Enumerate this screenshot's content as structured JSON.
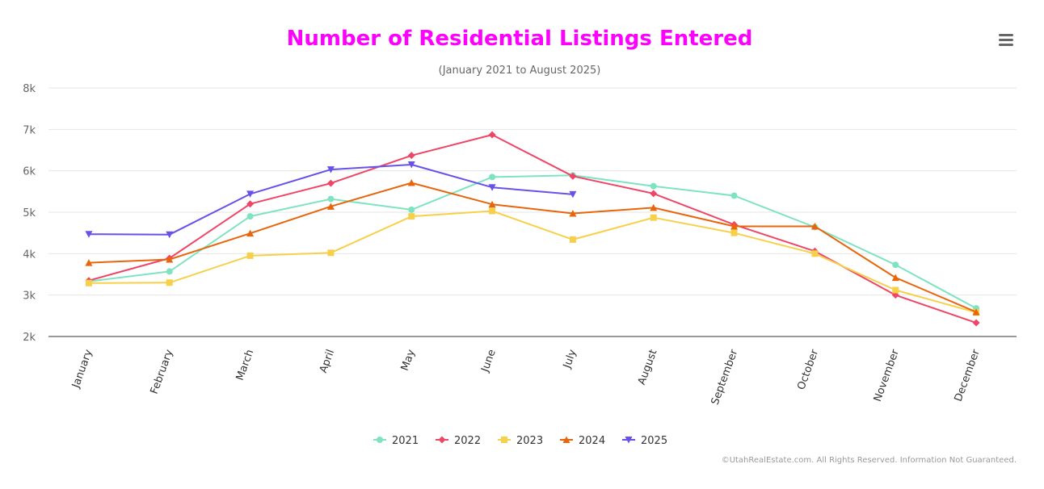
{
  "title": "Number of Residential Listings Entered",
  "subtitle": "(January 2021 to August 2025)",
  "credits": "©UtahRealEstate.com. All Rights Reserved. Information Not Guaranteed.",
  "menu_icon": "hamburger-menu-icon",
  "colors": {
    "title": "#ff00ff",
    "2021": "#7ee3c0",
    "2022": "#ef4566",
    "2023": "#f7d04a",
    "2024": "#e8650c",
    "2025": "#6652e8"
  },
  "chart_data": {
    "type": "line",
    "title": "Number of Residential Listings Entered",
    "subtitle": "(January 2021 to August 2025)",
    "xlabel": "",
    "ylabel": "",
    "ylim": [
      2000,
      8000
    ],
    "yticks": [
      2000,
      3000,
      4000,
      5000,
      6000,
      7000,
      8000
    ],
    "ytick_labels": [
      "2k",
      "3k",
      "4k",
      "5k",
      "6k",
      "7k",
      "8k"
    ],
    "grid": true,
    "legend_position": "bottom",
    "categories": [
      "January",
      "February",
      "March",
      "April",
      "May",
      "June",
      "July",
      "August",
      "September",
      "October",
      "November",
      "December"
    ],
    "series": [
      {
        "name": "2021",
        "marker": "circle",
        "values": [
          3330,
          3570,
          4900,
          5320,
          5060,
          5850,
          5890,
          5630,
          5400,
          4640,
          3730,
          2680
        ]
      },
      {
        "name": "2022",
        "marker": "diamond",
        "values": [
          3350,
          3890,
          5200,
          5700,
          6370,
          6870,
          5870,
          5450,
          4700,
          4060,
          3000,
          2330
        ]
      },
      {
        "name": "2023",
        "marker": "square",
        "values": [
          3290,
          3300,
          3950,
          4020,
          4900,
          5030,
          4340,
          4870,
          4500,
          4000,
          3120,
          2580
        ]
      },
      {
        "name": "2024",
        "marker": "triangle",
        "values": [
          3780,
          3860,
          4490,
          5140,
          5710,
          5190,
          4970,
          5110,
          4660,
          4660,
          3420,
          2590
        ]
      },
      {
        "name": "2025",
        "marker": "triangle-down",
        "values": [
          4470,
          4460,
          5440,
          6030,
          6150,
          5600,
          5430,
          null,
          null,
          null,
          null,
          null
        ]
      }
    ]
  }
}
